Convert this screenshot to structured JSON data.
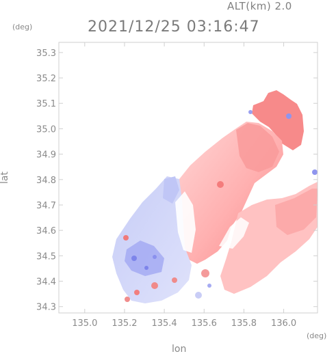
{
  "header": {
    "altitude": "ALT(km) 2.0",
    "timestamp": "2021/12/25 03:16:47"
  },
  "axes": {
    "y_unit": "(deg)",
    "x_unit": "(deg)",
    "xlabel": "lon",
    "ylabel": "lat",
    "x_ticks": [
      "135.0",
      "135.2",
      "135.4",
      "135.6",
      "135.8",
      "136.0"
    ],
    "y_ticks": [
      "35.3",
      "35.2",
      "35.1",
      "35.0",
      "34.9",
      "34.8",
      "34.7",
      "34.6",
      "34.5",
      "34.4",
      "34.3"
    ],
    "xlim": [
      134.87,
      136.17
    ],
    "ylim": [
      34.275,
      35.34
    ]
  },
  "chart_data": {
    "type": "heatmap",
    "xlabel": "lon",
    "ylabel": "lat",
    "xlim": [
      134.87,
      136.17
    ],
    "ylim": [
      34.275,
      35.34
    ],
    "colors": {
      "approaching": "#8b8fef",
      "receding": "#f57f7f",
      "neutral": "#ffffff"
    }
  }
}
